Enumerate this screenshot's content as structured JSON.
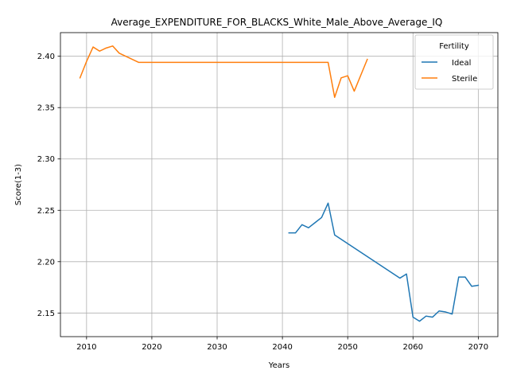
{
  "chart_data": {
    "type": "line",
    "title": "Average_EXPENDITURE_FOR_BLACKS_White_Male_Above_Average_IQ",
    "xlabel": "Years",
    "ylabel": "Score(1-3)",
    "xlim": [
      2006,
      2073
    ],
    "ylim": [
      2.127,
      2.423
    ],
    "x_ticks": [
      2010,
      2020,
      2030,
      2040,
      2050,
      2060,
      2070
    ],
    "y_ticks": [
      2.15,
      2.2,
      2.25,
      2.3,
      2.35,
      2.4
    ],
    "x_tick_labels": [
      "2010",
      "2020",
      "2030",
      "2040",
      "2050",
      "2060",
      "2070"
    ],
    "y_tick_labels": [
      "2.15",
      "2.20",
      "2.25",
      "2.30",
      "2.35",
      "2.40"
    ],
    "grid": true,
    "legend": {
      "title": "Fertility",
      "placement": "top-right"
    },
    "series": [
      {
        "name": "Ideal",
        "color": "#1f77b4",
        "x": [
          2041,
          2042,
          2043,
          2044,
          2045,
          2046,
          2047,
          2048,
          2058,
          2059,
          2060,
          2061,
          2062,
          2063,
          2064,
          2065,
          2066,
          2067,
          2068,
          2069,
          2070
        ],
        "y": [
          2.228,
          2.228,
          2.236,
          2.233,
          2.238,
          2.243,
          2.257,
          2.226,
          2.184,
          2.188,
          2.146,
          2.142,
          2.147,
          2.146,
          2.152,
          2.151,
          2.149,
          2.185,
          2.185,
          2.176,
          2.177
        ]
      },
      {
        "name": "Sterile",
        "color": "#ff7f0e",
        "x": [
          2009,
          2010,
          2011,
          2012,
          2013,
          2014,
          2015,
          2018,
          2047,
          2048,
          2049,
          2050,
          2051,
          2053
        ],
        "y": [
          2.379,
          2.395,
          2.409,
          2.405,
          2.408,
          2.41,
          2.403,
          2.394,
          2.394,
          2.36,
          2.379,
          2.381,
          2.366,
          2.397
        ]
      }
    ]
  }
}
